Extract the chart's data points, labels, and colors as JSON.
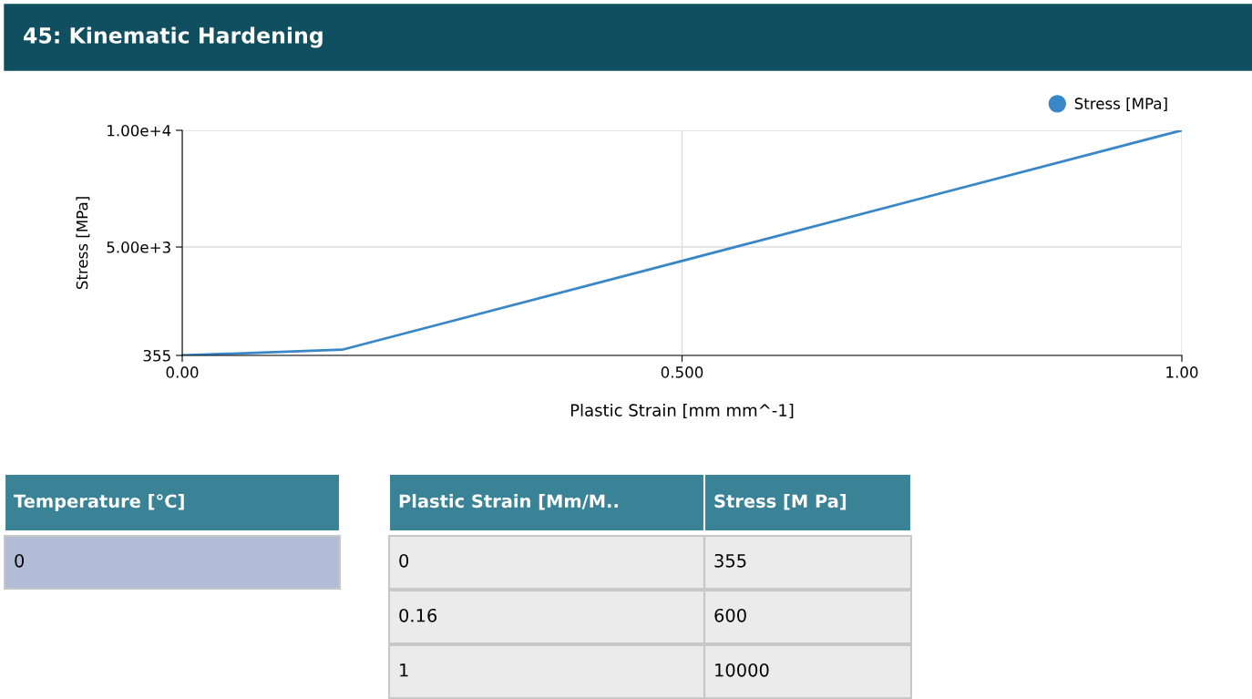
{
  "chart_data": {
    "type": "line",
    "title": "45: Kinematic Hardening",
    "xlabel": "Plastic Strain [mm mm^-1]",
    "ylabel": "Stress [MPa]",
    "x": [
      0,
      0.16,
      1
    ],
    "series": [
      {
        "name": "Stress [MPa]",
        "color": "#3a87c8",
        "values": [
          355,
          600,
          10000
        ]
      }
    ],
    "xlim": [
      0,
      1
    ],
    "xticks": [
      {
        "value": 0,
        "label": "0.00"
      },
      {
        "value": 0.5,
        "label": "0.500"
      },
      {
        "value": 1,
        "label": "1.00"
      }
    ],
    "ylim": [
      355,
      10000
    ],
    "yticks": [
      355,
      {
        "value": 5000,
        "label": "5.00e+3"
      },
      {
        "value": 10000,
        "label": "1.00e+4"
      }
    ],
    "grid": true,
    "legend": "top right",
    "annotations": [
      "Temperature [°C]",
      "0",
      "Plastic Strain [Mm/M..",
      "Stress [M Pa]",
      "0",
      "355",
      "0.16",
      "600",
      "1",
      "10000"
    ]
  }
}
